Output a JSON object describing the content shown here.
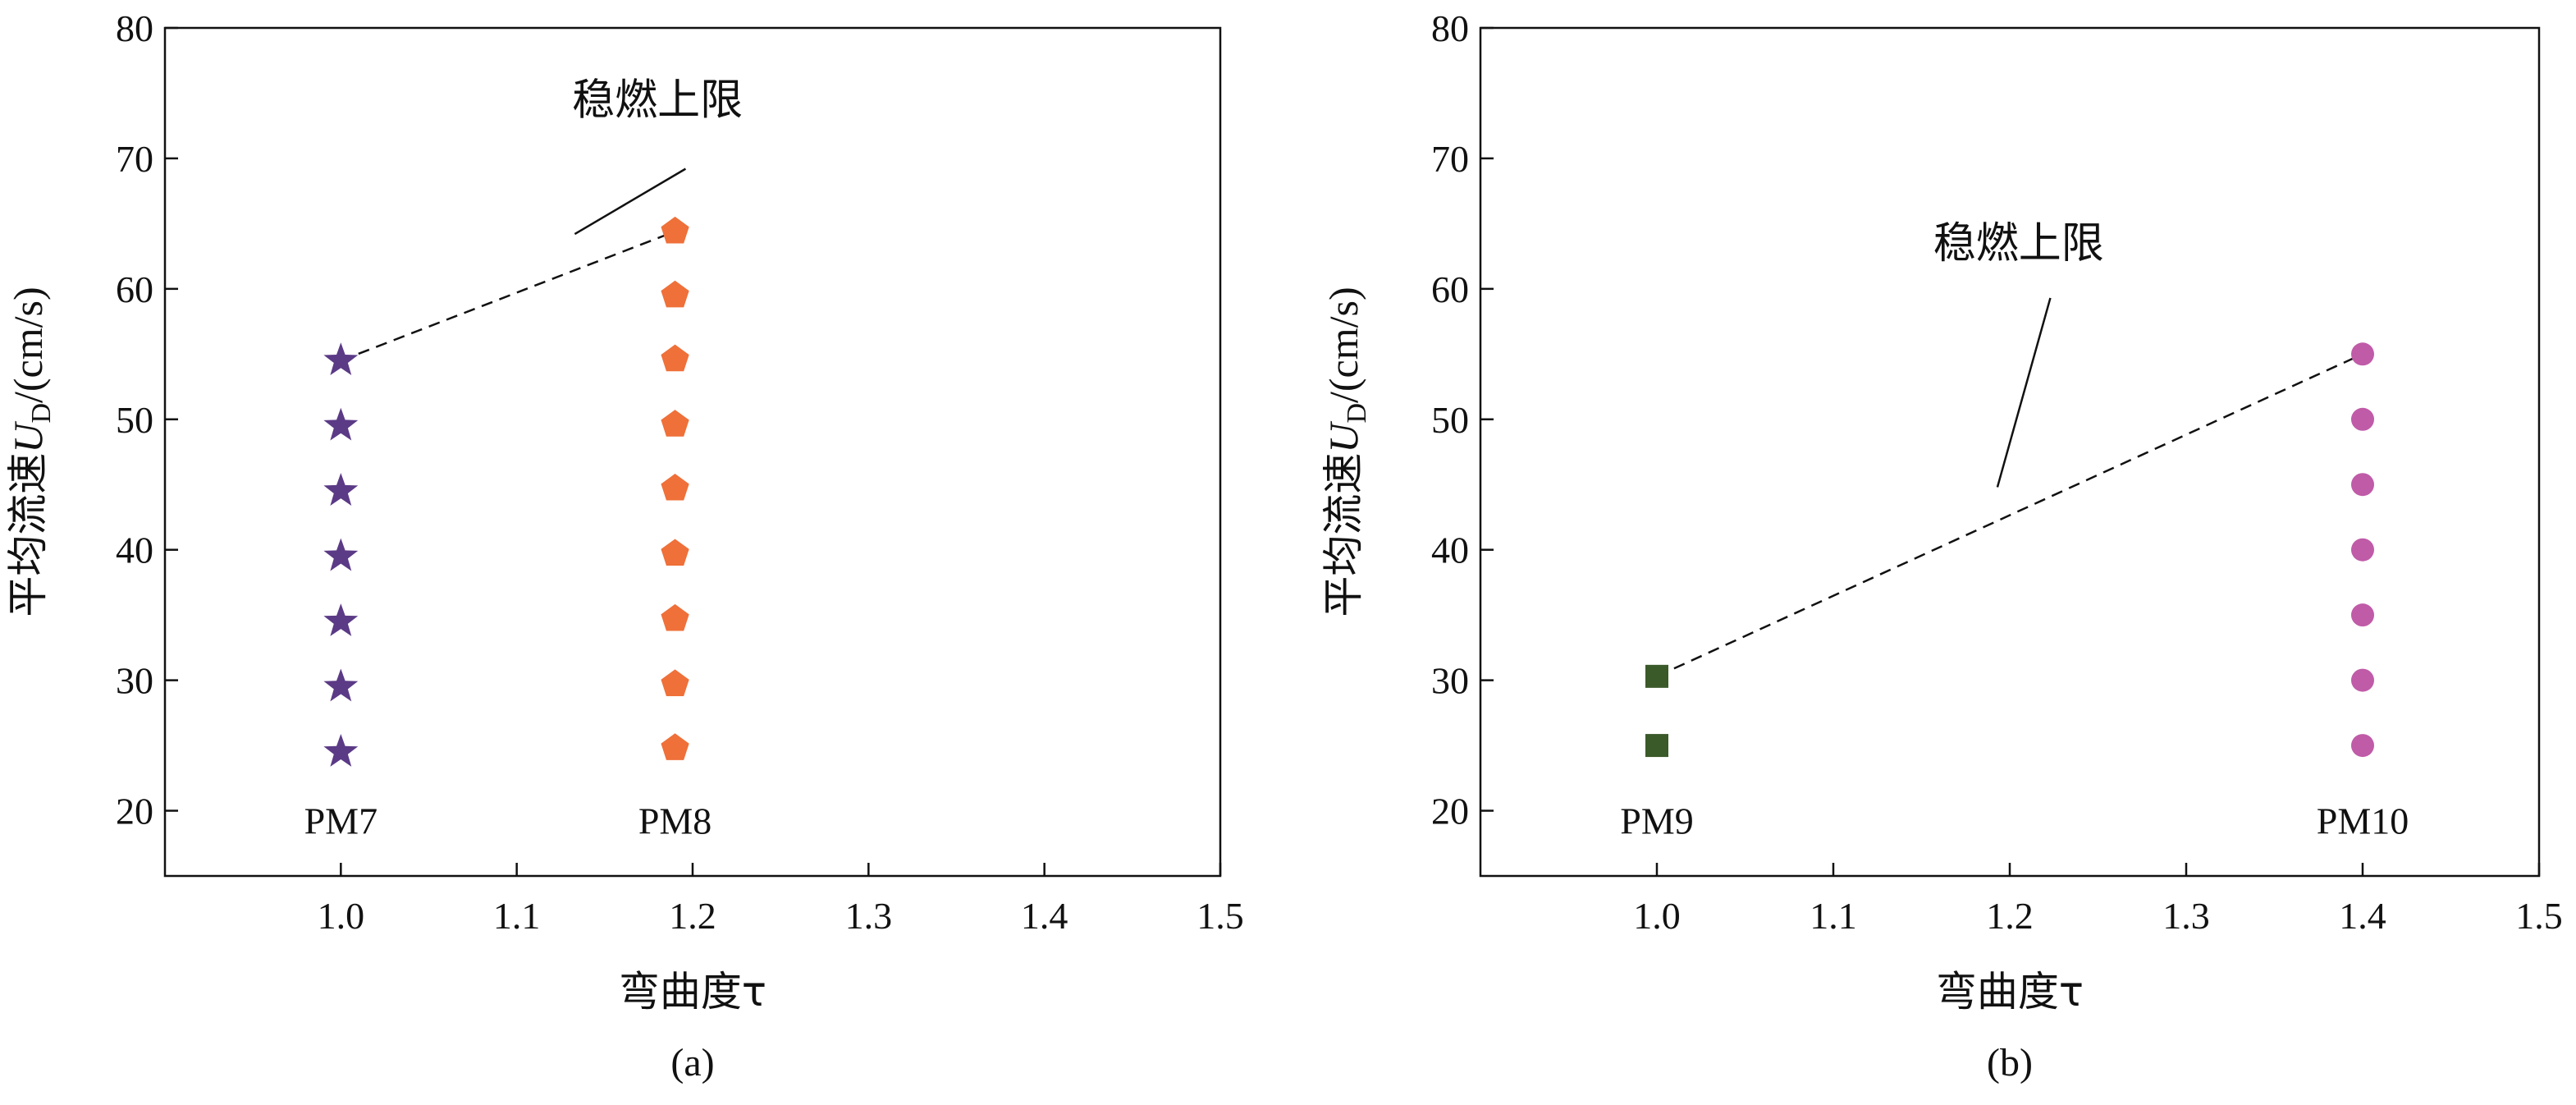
{
  "chart_data": [
    {
      "type": "scatter",
      "caption": "(a)",
      "xlabel": "弯曲度τ",
      "ylabel_main": "平均流速",
      "ylabel_var": "U",
      "ylabel_sub": "D",
      "ylabel_unit": "/(cm/s)",
      "xlim": [
        0.9,
        1.5
      ],
      "ylim": [
        15,
        80
      ],
      "xticks": [
        1.0,
        1.1,
        1.2,
        1.3,
        1.4,
        1.5
      ],
      "xtick_labels": [
        "1.0",
        "1.1",
        "1.2",
        "1.3",
        "1.4",
        "1.5"
      ],
      "yticks": [
        20,
        30,
        40,
        50,
        60,
        70,
        80
      ],
      "ytick_labels": [
        "20",
        "30",
        "40",
        "50",
        "60",
        "70",
        "80"
      ],
      "series": [
        {
          "name": "PM7",
          "marker": "star",
          "color": "#5b3a86",
          "x": [
            1.0,
            1.0,
            1.0,
            1.0,
            1.0,
            1.0,
            1.0
          ],
          "y": [
            24.5,
            29.5,
            34.5,
            39.5,
            44.5,
            49.5,
            54.5
          ]
        },
        {
          "name": "PM8",
          "marker": "pentagon",
          "color": "#ef7039",
          "x": [
            1.19,
            1.19,
            1.19,
            1.19,
            1.19,
            1.19,
            1.19,
            1.19,
            1.19
          ],
          "y": [
            24.8,
            29.7,
            34.7,
            39.7,
            44.7,
            49.6,
            54.6,
            59.5,
            64.4
          ]
        }
      ],
      "limit_line": {
        "x": [
          1.0,
          1.19
        ],
        "y": [
          54.5,
          64.4
        ]
      },
      "annotation": {
        "text": "稳燃上限",
        "text_x": 1.18,
        "text_y": 74.5,
        "pointer_from": [
          1.196,
          69.2
        ],
        "pointer_to": [
          1.133,
          64.2
        ]
      }
    },
    {
      "type": "scatter",
      "caption": "(b)",
      "xlabel": "弯曲度τ",
      "ylabel_main": "平均流速",
      "ylabel_var": "U",
      "ylabel_sub": "D",
      "ylabel_unit": "/(cm/s)",
      "xlim": [
        0.9,
        1.5
      ],
      "ylim": [
        15,
        80
      ],
      "xticks": [
        1.0,
        1.1,
        1.2,
        1.3,
        1.4,
        1.5
      ],
      "xtick_labels": [
        "1.0",
        "1.1",
        "1.2",
        "1.3",
        "1.4",
        "1.5"
      ],
      "yticks": [
        20,
        30,
        40,
        50,
        60,
        70,
        80
      ],
      "ytick_labels": [
        "20",
        "30",
        "40",
        "50",
        "60",
        "70",
        "80"
      ],
      "series": [
        {
          "name": "PM9",
          "marker": "square",
          "color": "#3b5a2a",
          "x": [
            1.0,
            1.0
          ],
          "y": [
            25.0,
            30.3
          ]
        },
        {
          "name": "PM10",
          "marker": "circle",
          "color": "#c05ba8",
          "x": [
            1.4,
            1.4,
            1.4,
            1.4,
            1.4,
            1.4,
            1.4
          ],
          "y": [
            25.0,
            30.0,
            35.0,
            40.0,
            45.0,
            50.0,
            55.0
          ]
        }
      ],
      "limit_line": {
        "x": [
          1.0,
          1.4
        ],
        "y": [
          30.3,
          55.0
        ]
      },
      "annotation": {
        "text": "稳燃上限",
        "text_x": 1.205,
        "text_y": 63.5,
        "pointer_from": [
          1.223,
          59.3
        ],
        "pointer_to": [
          1.193,
          44.8
        ]
      }
    }
  ]
}
